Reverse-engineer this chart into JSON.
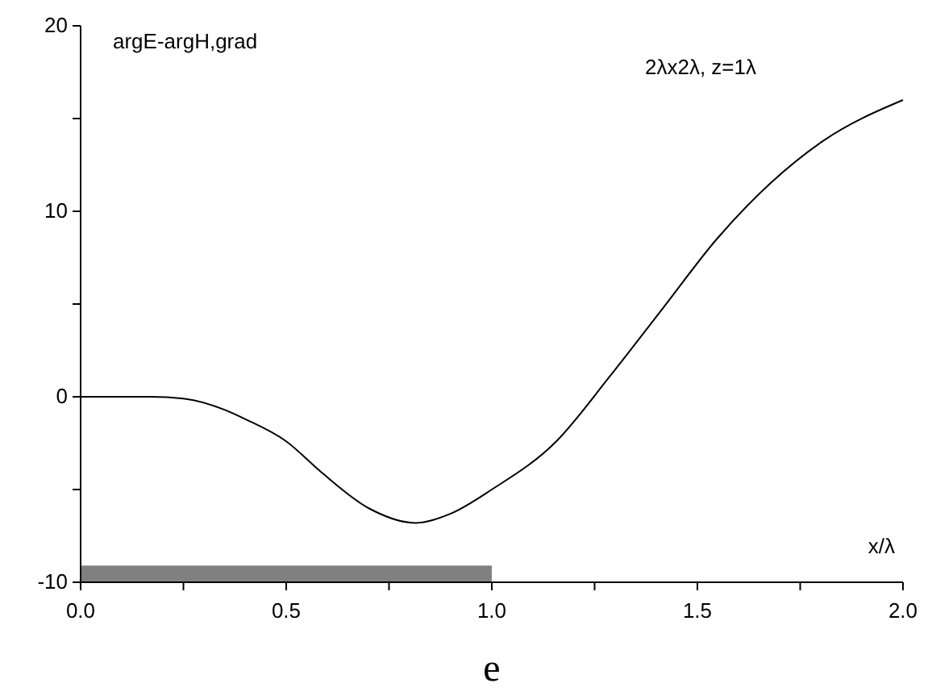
{
  "chart_data": {
    "type": "line",
    "title": "2λx2λ, z=1λ",
    "ylabel": "argE-argH,grad",
    "xlabel": "x/λ",
    "annotations": [
      "e"
    ],
    "x": [
      0,
      0.1,
      0.17,
      0.25,
      0.35,
      0.4,
      0.5,
      0.587,
      0.7,
      0.815,
      0.9,
      1.0,
      1.157,
      1.287,
      1.417,
      1.547,
      1.677,
      1.806,
      2.0
    ],
    "series": [
      {
        "color": "#000000",
        "values": [
          0,
          0,
          0,
          -0.1,
          -0.7,
          -1.2,
          -2.4,
          -4.1,
          -6.0,
          -6.8,
          -6.3,
          -5.0,
          -2.4,
          1.1,
          4.8,
          8.5,
          11.5,
          13.8,
          16.0
        ]
      }
    ],
    "xlim": [
      0,
      2
    ],
    "xticks": [
      {
        "value": 0,
        "label": "0.0"
      },
      {
        "value": 0.25,
        "label": null
      },
      {
        "value": 0.5,
        "label": "0.5"
      },
      {
        "value": 0.75,
        "label": null
      },
      {
        "value": 1,
        "label": "1.0"
      },
      {
        "value": 1.25,
        "label": null
      },
      {
        "value": 1.5,
        "label": "1.5"
      },
      {
        "value": 1.75,
        "label": null
      },
      {
        "value": 2,
        "label": "2.0"
      }
    ],
    "ylim": [
      -10,
      20
    ],
    "yticks": [
      -10,
      {
        "value": -5,
        "label": null
      },
      0,
      {
        "value": 5,
        "label": null
      },
      10,
      {
        "value": 15,
        "label": null
      },
      20
    ],
    "grid": false,
    "marker": "none",
    "line_style": "solid"
  }
}
